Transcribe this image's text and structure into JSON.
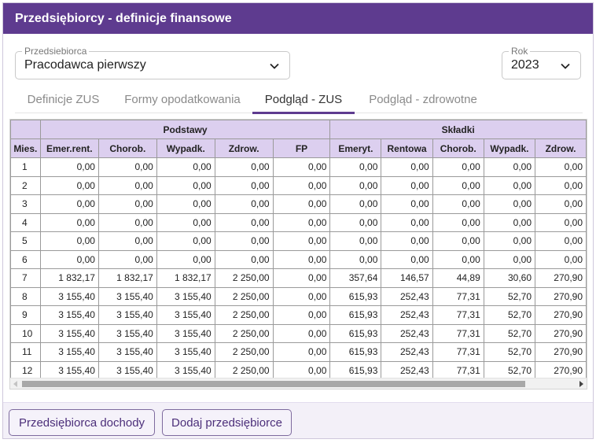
{
  "window": {
    "title": "Przedsiębiorcy - definicje finansowe"
  },
  "company_select": {
    "label": "Przedsiebiorca",
    "value": "Pracodawca pierwszy"
  },
  "year_select": {
    "label": "Rok",
    "value": "2023"
  },
  "tabs": [
    {
      "label": "Definicje ZUS",
      "active": false
    },
    {
      "label": "Formy opodatkowania",
      "active": false
    },
    {
      "label": "Podgląd - ZUS",
      "active": true
    },
    {
      "label": "Podgląd - zdrowotne",
      "active": false
    }
  ],
  "table": {
    "group_headers": {
      "bases": "Podstawy",
      "contributions": "Składki"
    },
    "columns": [
      "Mies.",
      "Emer.rent.",
      "Chorob.",
      "Wypadk.",
      "Zdrow.",
      "FP",
      "Emeryt.",
      "Rentowa",
      "Chorob.",
      "Wypadk.",
      "Zdrow."
    ],
    "rows": [
      [
        "1",
        "0,00",
        "0,00",
        "0,00",
        "0,00",
        "0,00",
        "0,00",
        "0,00",
        "0,00",
        "0,00",
        "0,00"
      ],
      [
        "2",
        "0,00",
        "0,00",
        "0,00",
        "0,00",
        "0,00",
        "0,00",
        "0,00",
        "0,00",
        "0,00",
        "0,00"
      ],
      [
        "3",
        "0,00",
        "0,00",
        "0,00",
        "0,00",
        "0,00",
        "0,00",
        "0,00",
        "0,00",
        "0,00",
        "0,00"
      ],
      [
        "4",
        "0,00",
        "0,00",
        "0,00",
        "0,00",
        "0,00",
        "0,00",
        "0,00",
        "0,00",
        "0,00",
        "0,00"
      ],
      [
        "5",
        "0,00",
        "0,00",
        "0,00",
        "0,00",
        "0,00",
        "0,00",
        "0,00",
        "0,00",
        "0,00",
        "0,00"
      ],
      [
        "6",
        "0,00",
        "0,00",
        "0,00",
        "0,00",
        "0,00",
        "0,00",
        "0,00",
        "0,00",
        "0,00",
        "0,00"
      ],
      [
        "7",
        "1 832,17",
        "1 832,17",
        "1 832,17",
        "2 250,00",
        "0,00",
        "357,64",
        "146,57",
        "44,89",
        "30,60",
        "270,90"
      ],
      [
        "8",
        "3 155,40",
        "3 155,40",
        "3 155,40",
        "2 250,00",
        "0,00",
        "615,93",
        "252,43",
        "77,31",
        "52,70",
        "270,90"
      ],
      [
        "9",
        "3 155,40",
        "3 155,40",
        "3 155,40",
        "2 250,00",
        "0,00",
        "615,93",
        "252,43",
        "77,31",
        "52,70",
        "270,90"
      ],
      [
        "10",
        "3 155,40",
        "3 155,40",
        "3 155,40",
        "2 250,00",
        "0,00",
        "615,93",
        "252,43",
        "77,31",
        "52,70",
        "270,90"
      ],
      [
        "11",
        "3 155,40",
        "3 155,40",
        "3 155,40",
        "2 250,00",
        "0,00",
        "615,93",
        "252,43",
        "77,31",
        "52,70",
        "270,90"
      ],
      [
        "12",
        "3 155,40",
        "3 155,40",
        "3 155,40",
        "2 250,00",
        "0,00",
        "615,93",
        "252,43",
        "77,31",
        "52,70",
        "270,90"
      ]
    ]
  },
  "footer": {
    "income_button": "Przedsiębiorca dochody",
    "add_button": "Dodaj przedsiębiorce"
  },
  "colors": {
    "accent": "#5e3b8f",
    "header_bg": "#dccfef",
    "footer_bg": "#f3f0f8"
  },
  "icons": {
    "select_chevron": "chevron-down-icon",
    "scroll_left": "arrow-left-icon",
    "scroll_right": "arrow-right-icon"
  }
}
